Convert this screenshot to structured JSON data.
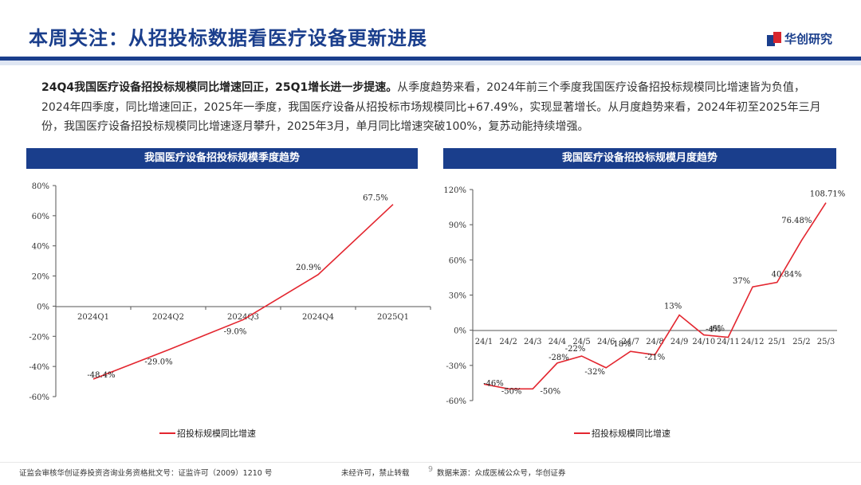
{
  "header": {
    "title": "本周关注：从招投标数据看医疗设备更新进展",
    "logo_text": "华创研究"
  },
  "intro": {
    "bold": "24Q4我国医疗设备招投标规模同比增速回正，25Q1增长进一步提速。",
    "rest": "从季度趋势来看，2024年前三个季度我国医疗设备招投标规模同比增速皆为负值，2024年四季度，同比增速回正，2025年一季度，我国医疗设备从招投标市场规模同比+67.49%，实现显著增长。从月度趋势来看，2024年初至2025年三月份，我国医疗设备招投标规模同比增速逐月攀升，2025年3月，单月同比增速突破100%，复苏动能持续增强。"
  },
  "chart_data": [
    {
      "type": "line",
      "title": "我国医疗设备招投标规模季度趋势",
      "categories": [
        "2024Q1",
        "2024Q2",
        "2024Q3",
        "2024Q4",
        "2025Q1"
      ],
      "series": [
        {
          "name": "招投标规模同比增速",
          "values": [
            -48.4,
            -29.0,
            -9.0,
            20.9,
            67.5
          ]
        }
      ],
      "data_labels": [
        "-48.4%",
        "-29.0%",
        "-9.0%",
        "20.9%",
        "67.5%"
      ],
      "yticks": [
        "80%",
        "60%",
        "40%",
        "20%",
        "0%",
        "-20%",
        "-40%",
        "-60%"
      ],
      "ylim": [
        -60,
        80
      ],
      "color": "#e3262f",
      "legend": "bottom"
    },
    {
      "type": "line",
      "title": "我国医疗设备招投标规模月度趋势",
      "categories": [
        "24/1",
        "24/2",
        "24/3",
        "24/4",
        "24/5",
        "24/6",
        "24/7",
        "24/8",
        "24/9",
        "24/10",
        "24/11",
        "24/12",
        "25/1",
        "25/2",
        "25/3"
      ],
      "series": [
        {
          "name": "招投标规模同比增速",
          "values": [
            -46,
            -50,
            -50,
            -28,
            -22,
            -32,
            -18,
            -21,
            13,
            -4,
            -6,
            37,
            40.84,
            76.48,
            108.71
          ]
        }
      ],
      "data_labels": [
        "-46%",
        "-50%",
        "-50%",
        "-28%",
        "-22%",
        "-32%",
        "-18%",
        "-21%",
        "13%",
        "-4%",
        "-6%",
        "37%",
        "40.84%",
        "76.48%",
        "108.71%"
      ],
      "yticks": [
        "120%",
        "90%",
        "60%",
        "30%",
        "0%",
        "-30%",
        "-60%"
      ],
      "ylim": [
        -60,
        120
      ],
      "color": "#e3262f",
      "legend": "bottom"
    }
  ],
  "footer": {
    "left": "证监会审核华创证券投资咨询业务资格批文号：证监许可（2009）1210 号",
    "mid": "未经许可，禁止转载",
    "page": "9",
    "source": "数据来源：众成医械公众号，华创证券"
  }
}
